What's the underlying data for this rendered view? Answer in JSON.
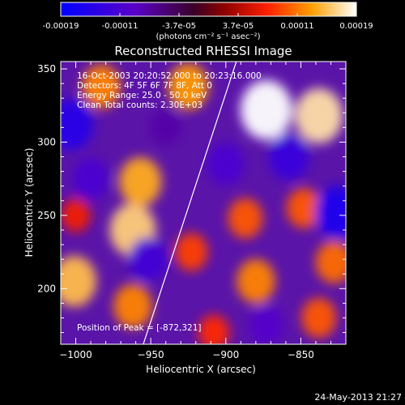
{
  "colorbar": {
    "tick_labels": [
      "-0.00019",
      "-0.00011",
      "-3.7e-05",
      "3.7e-05",
      "0.00011",
      "0.00019"
    ],
    "units_label": "(photons cm⁻² s⁻¹ asec⁻²)",
    "range": [
      -0.00019,
      0.00019
    ]
  },
  "chart_data": {
    "type": "heatmap",
    "title": "Reconstructed RHESSI Image",
    "xlabel": "Heliocentric X (arcsec)",
    "ylabel": "Heliocentric Y (arcsec)",
    "xlim": [
      -1010,
      -820
    ],
    "ylim": [
      162,
      355
    ],
    "xticks": [
      -1000,
      -950,
      -900,
      -850
    ],
    "yticks": [
      200,
      250,
      300,
      350
    ],
    "info_lines": [
      "16-Oct-2003 20:20:52.000 to 20:23:16.000",
      "Detectors: 4F 5F 6F 7F 8F, Att 0",
      "Energy Range: 25.0 - 50.0 keV",
      "Clean     Total counts: 2.30E+03"
    ],
    "peak_annotation": "Position of Peak = [-872,321]",
    "peak_position": [
      -872,
      321
    ],
    "limb_line": {
      "x": [
        -955,
        -893
      ],
      "y": [
        162,
        355
      ]
    },
    "colormap": "rainbow-like (blue-purple-red-yellow-white)",
    "intensity_blobs": [
      {
        "x": -873,
        "y": 322,
        "value": 0.00019
      },
      {
        "x": -838,
        "y": 318,
        "value": 0.00017
      },
      {
        "x": -962,
        "y": 240,
        "value": 0.00016
      },
      {
        "x": -957,
        "y": 273,
        "value": 0.00014
      },
      {
        "x": -983,
        "y": 338,
        "value": 0.00012
      },
      {
        "x": -925,
        "y": 338,
        "value": 0.00013
      },
      {
        "x": -1001,
        "y": 205,
        "value": 0.00015
      },
      {
        "x": -962,
        "y": 188,
        "value": 0.00012
      },
      {
        "x": -887,
        "y": 248,
        "value": 0.0001
      },
      {
        "x": -848,
        "y": 255,
        "value": 0.0001
      },
      {
        "x": -880,
        "y": 205,
        "value": 0.00012
      },
      {
        "x": -828,
        "y": 218,
        "value": 0.00011
      },
      {
        "x": -923,
        "y": 225,
        "value": 9e-05
      },
      {
        "x": -838,
        "y": 180,
        "value": 0.0001
      },
      {
        "x": -908,
        "y": 170,
        "value": 8e-05
      },
      {
        "x": -1000,
        "y": 250,
        "value": 7e-05
      },
      {
        "x": -1003,
        "y": 312,
        "value": -0.00015
      },
      {
        "x": -825,
        "y": 252,
        "value": -0.00016
      },
      {
        "x": -952,
        "y": 220,
        "value": -0.00012
      },
      {
        "x": -990,
        "y": 275,
        "value": -0.00011
      },
      {
        "x": -858,
        "y": 290,
        "value": -0.00013
      },
      {
        "x": -873,
        "y": 175,
        "value": -0.0001
      },
      {
        "x": -900,
        "y": 285,
        "value": -0.00011
      },
      {
        "x": -940,
        "y": 310,
        "value": -8e-05
      }
    ]
  },
  "footer": {
    "timestamp": "24-May-2013 21:27"
  }
}
